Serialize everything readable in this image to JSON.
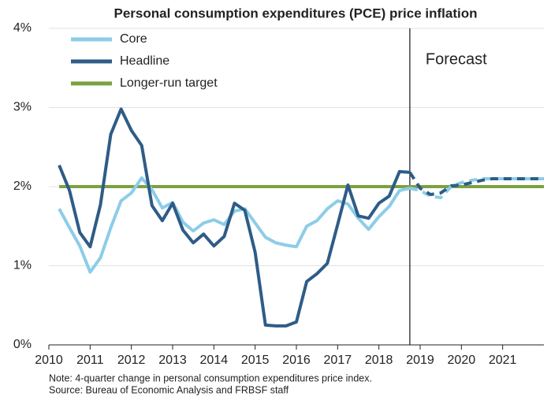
{
  "chart_data": {
    "type": "line",
    "title": "Personal consumption expenditures (PCE) price inflation",
    "x": [
      2010.25,
      2010.5,
      2010.75,
      2011,
      2011.25,
      2011.5,
      2011.75,
      2012,
      2012.25,
      2012.5,
      2012.75,
      2013,
      2013.25,
      2013.5,
      2013.75,
      2014,
      2014.25,
      2014.5,
      2014.75,
      2015,
      2015.25,
      2015.5,
      2015.75,
      2016,
      2016.25,
      2016.5,
      2016.75,
      2017,
      2017.25,
      2017.5,
      2017.75,
      2018,
      2018.25,
      2018.5,
      2018.75,
      2019,
      2019.25,
      2019.5,
      2019.75,
      2020,
      2020.25,
      2020.5,
      2020.75,
      2021,
      2021.25,
      2021.5,
      2021.75,
      2022
    ],
    "series": [
      {
        "name": "Core",
        "color": "#8ccde8",
        "values": [
          1.72,
          1.48,
          1.25,
          0.92,
          1.1,
          1.48,
          1.82,
          1.92,
          2.11,
          1.96,
          1.73,
          1.8,
          1.55,
          1.44,
          1.54,
          1.58,
          1.52,
          1.69,
          1.72,
          1.54,
          1.36,
          1.29,
          1.26,
          1.24,
          1.5,
          1.57,
          1.72,
          1.82,
          1.78,
          1.6,
          1.46,
          1.62,
          1.75,
          1.95,
          1.98,
          1.95,
          1.88,
          1.86,
          2.0,
          2.05,
          2.08,
          2.1,
          2.1,
          2.1,
          2.1,
          2.1,
          2.1,
          2.1
        ]
      },
      {
        "name": "Headline",
        "color": "#2e5c87",
        "values": [
          2.27,
          1.95,
          1.42,
          1.24,
          1.77,
          2.66,
          2.98,
          2.71,
          2.52,
          1.76,
          1.57,
          1.79,
          1.45,
          1.29,
          1.4,
          1.25,
          1.37,
          1.79,
          1.7,
          1.17,
          0.25,
          0.24,
          0.24,
          0.29,
          0.8,
          0.9,
          1.03,
          1.52,
          2.02,
          1.63,
          1.6,
          1.79,
          1.88,
          2.19,
          2.18,
          1.98,
          1.9,
          1.92,
          2.01,
          2.02,
          2.05,
          2.08,
          2.1,
          2.1,
          2.1,
          2.1,
          2.1,
          2.1
        ]
      }
    ],
    "target": {
      "name": "Longer-run target",
      "color": "#7ba23f",
      "value": 2
    },
    "forecast": {
      "x": 2018.75,
      "label": "Forecast"
    },
    "xlim": [
      2010,
      2022
    ],
    "xticks": [
      2010,
      2011,
      2012,
      2013,
      2014,
      2015,
      2016,
      2017,
      2018,
      2019,
      2020,
      2021
    ],
    "ylim": [
      0,
      4
    ],
    "yticks": [
      {
        "value": 0,
        "label": "0%"
      },
      {
        "value": 1,
        "label": "1%"
      },
      {
        "value": 2,
        "label": "2%"
      },
      {
        "value": 3,
        "label": "3%"
      },
      {
        "value": 4,
        "label": "4%"
      }
    ],
    "grid": true,
    "legend": "top-left",
    "note": "Note: 4-quarter change in personal consumption expenditures price index.",
    "source": "Source: Bureau of Economic Analysis and FRBSF staff"
  }
}
